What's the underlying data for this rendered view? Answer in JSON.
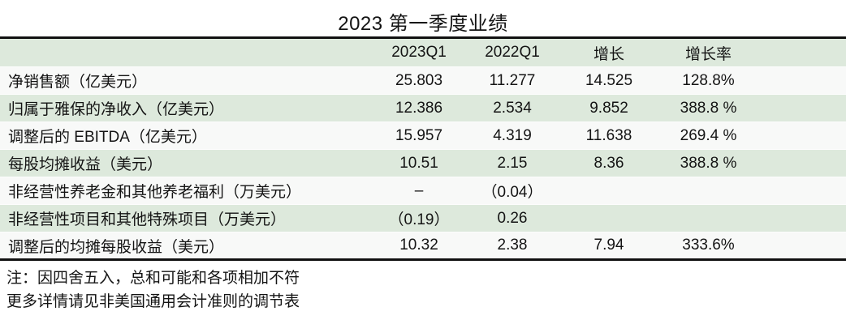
{
  "title": "2023 第一季度业绩",
  "colors": {
    "header_bg": "#dde9dc",
    "row_bg": "#f8f9f8",
    "row_alt_bg": "#dde9dc",
    "border": "#111111",
    "text": "#141414"
  },
  "table": {
    "columns": [
      "",
      "2023Q1",
      "2022Q1",
      "增长",
      "增长率"
    ],
    "rows": [
      {
        "label": "净销售额（亿美元）",
        "v2023q1": "25.803",
        "v2022q1": "11.277",
        "growth": "14.525",
        "growth_rate": "128.8%"
      },
      {
        "label": "归属于雅保的净收入（亿美元）",
        "v2023q1": "12.386",
        "v2022q1": "2.534",
        "growth": "9.852",
        "growth_rate": "388.8 %"
      },
      {
        "label": "调整后的 EBITDA（亿美元）",
        "v2023q1": "15.957",
        "v2022q1": "4.319",
        "growth": "11.638",
        "growth_rate": "269.4 %"
      },
      {
        "label": "每股均摊收益（美元）",
        "v2023q1": "10.51",
        "v2022q1": "2.15",
        "growth": "8.36",
        "growth_rate": "388.8 %"
      },
      {
        "label": "非经营性养老金和其他养老福利（万美元）",
        "v2023q1": "–",
        "v2022q1": "（0.04）",
        "growth": "",
        "growth_rate": ""
      },
      {
        "label": "非经营性项目和其他特殊项目（万美元）",
        "v2023q1": "（0.19）",
        "v2022q1": "0.26",
        "growth": "",
        "growth_rate": ""
      },
      {
        "label": "调整后的均摊每股收益（美元）",
        "v2023q1": "10.32",
        "v2022q1": "2.38",
        "growth": "7.94",
        "growth_rate": "333.6%"
      }
    ]
  },
  "notes": [
    "注：因四舍五入，总和可能和各项相加不符",
    "更多详情请见非美国通用会计准则的调节表"
  ]
}
